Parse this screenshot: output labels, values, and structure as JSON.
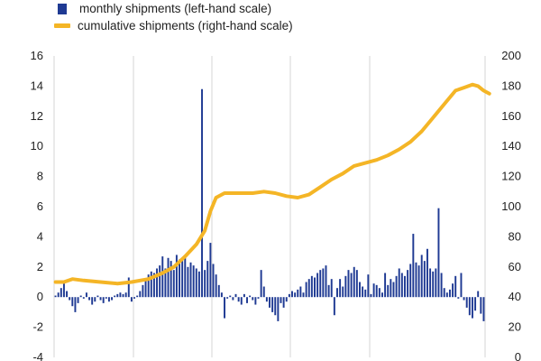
{
  "chart_data": {
    "type": "bar+line",
    "legend": {
      "monthly": "monthly shipments (left-hand scale)",
      "cumulative": "cumulative shipments (right-hand scale)"
    },
    "left_axis": {
      "min": -4,
      "max": 16,
      "ticks": [
        "-4",
        "-2",
        "0",
        "2",
        "4",
        "6",
        "8",
        "10",
        "12",
        "14",
        "16"
      ]
    },
    "right_axis": {
      "min": 0,
      "max": 200,
      "ticks": [
        "0",
        "20",
        "40",
        "60",
        "80",
        "100",
        "120",
        "140",
        "160",
        "180",
        "200"
      ]
    },
    "grid": "vertical",
    "series": [
      {
        "name": "monthly shipments (left-hand scale)",
        "type": "bar",
        "axis": "left",
        "color": "#1f3a93",
        "values": [
          0.1,
          0.3,
          0.6,
          1.0,
          0.4,
          -0.2,
          -0.6,
          -1.0,
          -0.4,
          0.1,
          -0.1,
          0.3,
          -0.2,
          -0.5,
          -0.3,
          0.1,
          -0.2,
          -0.4,
          -0.1,
          -0.3,
          -0.2,
          0.1,
          0.2,
          0.3,
          0.2,
          0.3,
          1.3,
          -0.3,
          -0.1,
          0.1,
          0.4,
          0.8,
          1.2,
          1.5,
          1.7,
          1.6,
          1.9,
          2.1,
          2.7,
          1.9,
          2.6,
          2.4,
          1.8,
          2.8,
          2.5,
          2.4,
          2.6,
          2.0,
          2.3,
          2.1,
          1.9,
          1.7,
          13.8,
          1.8,
          2.4,
          3.6,
          2.2,
          1.5,
          0.8,
          0.3,
          -1.4,
          -0.1,
          0.1,
          -0.2,
          0.2,
          -0.3,
          -0.5,
          0.2,
          -0.4,
          0.1,
          -0.2,
          -0.5,
          -0.1,
          1.8,
          0.7,
          -0.3,
          -0.7,
          -1.0,
          -1.2,
          -1.6,
          -0.4,
          -0.7,
          -0.3,
          0.2,
          0.4,
          0.3,
          0.5,
          0.7,
          0.3,
          1.0,
          1.2,
          1.4,
          1.3,
          1.6,
          1.8,
          1.9,
          2.1,
          0.8,
          1.2,
          -1.2,
          0.6,
          1.2,
          0.7,
          1.4,
          1.8,
          1.6,
          2.0,
          1.8,
          1.0,
          0.7,
          0.5,
          1.5,
          0.2,
          0.9,
          0.8,
          0.6,
          0.3,
          1.6,
          0.8,
          1.2,
          1.0,
          1.4,
          1.9,
          1.6,
          1.4,
          1.8,
          2.2,
          4.2,
          2.3,
          2.1,
          2.8,
          2.4,
          3.2,
          1.9,
          1.7,
          1.9,
          5.9,
          1.6,
          0.6,
          0.3,
          0.5,
          0.9,
          1.4,
          -0.1,
          1.6,
          -0.2,
          -0.7,
          -1.2,
          -1.4,
          -0.9,
          0.4,
          -1.1,
          -1.6
        ]
      },
      {
        "name": "cumulative shipments (right-hand scale)",
        "type": "line",
        "axis": "right",
        "color": "#f4b526",
        "points": [
          [
            0,
            50
          ],
          [
            3,
            50
          ],
          [
            6,
            52
          ],
          [
            10,
            51
          ],
          [
            16,
            50
          ],
          [
            22,
            49
          ],
          [
            27,
            50
          ],
          [
            33,
            52
          ],
          [
            38,
            56
          ],
          [
            42,
            60
          ],
          [
            46,
            67
          ],
          [
            50,
            75
          ],
          [
            53,
            84
          ],
          [
            55,
            97
          ],
          [
            57,
            106
          ],
          [
            60,
            109
          ],
          [
            65,
            109
          ],
          [
            70,
            109
          ],
          [
            74,
            110
          ],
          [
            78,
            109
          ],
          [
            82,
            107
          ],
          [
            86,
            106
          ],
          [
            90,
            108
          ],
          [
            94,
            113
          ],
          [
            98,
            118
          ],
          [
            102,
            122
          ],
          [
            106,
            127
          ],
          [
            110,
            129
          ],
          [
            114,
            131
          ],
          [
            118,
            134
          ],
          [
            122,
            138
          ],
          [
            126,
            143
          ],
          [
            130,
            150
          ],
          [
            134,
            159
          ],
          [
            138,
            168
          ],
          [
            142,
            177
          ],
          [
            145,
            179
          ],
          [
            148,
            181
          ],
          [
            150,
            180
          ],
          [
            152,
            177
          ],
          [
            154,
            175
          ]
        ]
      }
    ]
  }
}
